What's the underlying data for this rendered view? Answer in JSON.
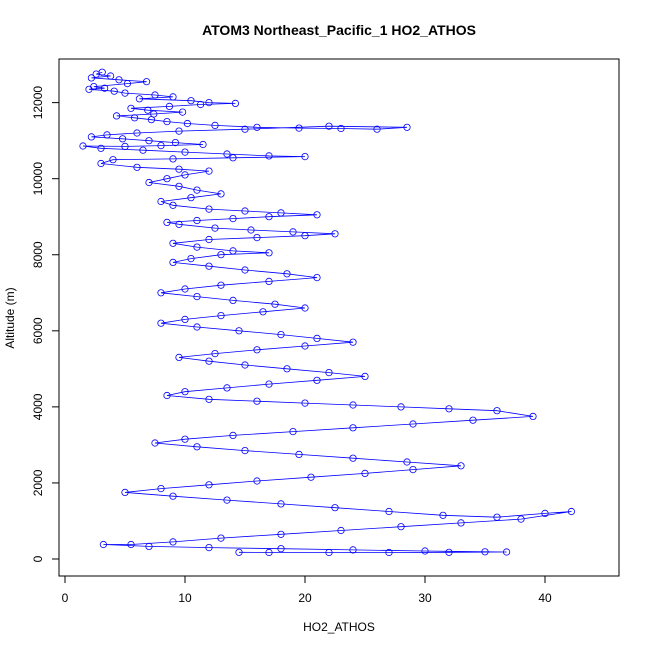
{
  "chart_data": {
    "type": "scatter",
    "title": "ATOM3 Northeast_Pacific_1 HO2_ATHOS",
    "xlabel": "HO2_ATHOS",
    "ylabel": "Altitude (m)",
    "xlim": [
      0,
      42
    ],
    "ylim": [
      0,
      12700
    ],
    "x_ticks": [
      0,
      10,
      20,
      30,
      40
    ],
    "y_ticks": [
      0,
      2000,
      4000,
      6000,
      8000,
      10000,
      12000
    ],
    "point_style": "open-circle",
    "connected": true,
    "grid": false,
    "legend": "none",
    "color": "#0000ff",
    "series": [
      {
        "points": [
          [
            3.1,
            12800
          ],
          [
            2.6,
            12750
          ],
          [
            3.8,
            12700
          ],
          [
            2.2,
            12650
          ],
          [
            4.5,
            12600
          ],
          [
            6.8,
            12550
          ],
          [
            5.2,
            12500
          ],
          [
            2.4,
            12420
          ],
          [
            3.3,
            12380
          ],
          [
            2.0,
            12350
          ],
          [
            4.1,
            12300
          ],
          [
            5.0,
            12250
          ],
          [
            7.5,
            12200
          ],
          [
            9.0,
            12150
          ],
          [
            6.2,
            12100
          ],
          [
            10.5,
            12050
          ],
          [
            12.0,
            12000
          ],
          [
            14.2,
            11980
          ],
          [
            11.3,
            11950
          ],
          [
            8.7,
            11900
          ],
          [
            5.5,
            11850
          ],
          [
            6.9,
            11800
          ],
          [
            9.8,
            11750
          ],
          [
            7.4,
            11700
          ],
          [
            4.3,
            11650
          ],
          [
            5.8,
            11600
          ],
          [
            7.2,
            11550
          ],
          [
            8.5,
            11500
          ],
          [
            10.2,
            11450
          ],
          [
            12.5,
            11400
          ],
          [
            16.0,
            11350
          ],
          [
            19.5,
            11330
          ],
          [
            23.0,
            11320
          ],
          [
            26.0,
            11300
          ],
          [
            28.5,
            11350
          ],
          [
            22.0,
            11380
          ],
          [
            15.0,
            11300
          ],
          [
            9.5,
            11250
          ],
          [
            6.0,
            11200
          ],
          [
            3.5,
            11150
          ],
          [
            2.2,
            11100
          ],
          [
            4.8,
            11050
          ],
          [
            7.0,
            11000
          ],
          [
            9.2,
            10950
          ],
          [
            11.5,
            10900
          ],
          [
            8.0,
            10870
          ],
          [
            5.0,
            10850
          ],
          [
            1.5,
            10860
          ],
          [
            3.0,
            10800
          ],
          [
            6.5,
            10750
          ],
          [
            10.0,
            10700
          ],
          [
            13.5,
            10650
          ],
          [
            17.0,
            10600
          ],
          [
            20.0,
            10580
          ],
          [
            14.0,
            10550
          ],
          [
            9.0,
            10520
          ],
          [
            4.0,
            10500
          ],
          [
            3.0,
            10400
          ],
          [
            6.0,
            10300
          ],
          [
            9.5,
            10250
          ],
          [
            12.0,
            10200
          ],
          [
            10.0,
            10100
          ],
          [
            8.5,
            10000
          ],
          [
            7.0,
            9900
          ],
          [
            9.5,
            9800
          ],
          [
            11.0,
            9700
          ],
          [
            13.0,
            9600
          ],
          [
            10.5,
            9500
          ],
          [
            8.0,
            9400
          ],
          [
            9.0,
            9300
          ],
          [
            12.0,
            9200
          ],
          [
            15.0,
            9150
          ],
          [
            18.0,
            9100
          ],
          [
            21.0,
            9050
          ],
          [
            17.0,
            9000
          ],
          [
            14.0,
            8950
          ],
          [
            11.0,
            8900
          ],
          [
            8.5,
            8850
          ],
          [
            9.5,
            8800
          ],
          [
            12.5,
            8700
          ],
          [
            15.5,
            8650
          ],
          [
            19.0,
            8600
          ],
          [
            22.5,
            8550
          ],
          [
            20.0,
            8500
          ],
          [
            16.0,
            8450
          ],
          [
            12.0,
            8400
          ],
          [
            9.0,
            8300
          ],
          [
            11.0,
            8200
          ],
          [
            14.0,
            8100
          ],
          [
            17.0,
            8050
          ],
          [
            13.0,
            8000
          ],
          [
            10.5,
            7900
          ],
          [
            9.0,
            7800
          ],
          [
            12.0,
            7700
          ],
          [
            15.0,
            7600
          ],
          [
            18.5,
            7500
          ],
          [
            21.0,
            7400
          ],
          [
            17.0,
            7300
          ],
          [
            13.0,
            7200
          ],
          [
            10.0,
            7100
          ],
          [
            8.0,
            7000
          ],
          [
            11.0,
            6900
          ],
          [
            14.0,
            6800
          ],
          [
            17.5,
            6700
          ],
          [
            20.0,
            6600
          ],
          [
            16.5,
            6500
          ],
          [
            13.0,
            6400
          ],
          [
            10.0,
            6300
          ],
          [
            8.0,
            6200
          ],
          [
            11.0,
            6100
          ],
          [
            14.5,
            6000
          ],
          [
            18.0,
            5900
          ],
          [
            21.0,
            5800
          ],
          [
            24.0,
            5700
          ],
          [
            20.0,
            5600
          ],
          [
            16.0,
            5500
          ],
          [
            12.5,
            5400
          ],
          [
            9.5,
            5300
          ],
          [
            12.0,
            5200
          ],
          [
            15.0,
            5100
          ],
          [
            18.5,
            5000
          ],
          [
            22.0,
            4900
          ],
          [
            25.0,
            4800
          ],
          [
            21.0,
            4700
          ],
          [
            17.0,
            4600
          ],
          [
            13.5,
            4500
          ],
          [
            10.0,
            4400
          ],
          [
            8.5,
            4300
          ],
          [
            12.0,
            4200
          ],
          [
            16.0,
            4150
          ],
          [
            20.0,
            4100
          ],
          [
            24.0,
            4050
          ],
          [
            28.0,
            4000
          ],
          [
            32.0,
            3950
          ],
          [
            36.0,
            3900
          ],
          [
            39.0,
            3750
          ],
          [
            34.0,
            3650
          ],
          [
            29.0,
            3550
          ],
          [
            24.0,
            3450
          ],
          [
            19.0,
            3350
          ],
          [
            14.0,
            3250
          ],
          [
            10.0,
            3150
          ],
          [
            7.5,
            3050
          ],
          [
            11.0,
            2950
          ],
          [
            15.0,
            2850
          ],
          [
            19.5,
            2750
          ],
          [
            24.0,
            2650
          ],
          [
            28.5,
            2550
          ],
          [
            33.0,
            2450
          ],
          [
            29.0,
            2350
          ],
          [
            25.0,
            2250
          ],
          [
            20.5,
            2150
          ],
          [
            16.0,
            2050
          ],
          [
            12.0,
            1950
          ],
          [
            8.0,
            1850
          ],
          [
            5.0,
            1750
          ],
          [
            9.0,
            1650
          ],
          [
            13.5,
            1550
          ],
          [
            18.0,
            1450
          ],
          [
            22.5,
            1350
          ],
          [
            27.0,
            1250
          ],
          [
            31.5,
            1150
          ],
          [
            36.0,
            1100
          ],
          [
            40.0,
            1200
          ],
          [
            42.2,
            1250
          ],
          [
            38.0,
            1050
          ],
          [
            33.0,
            950
          ],
          [
            28.0,
            850
          ],
          [
            23.0,
            750
          ],
          [
            18.0,
            650
          ],
          [
            13.0,
            550
          ],
          [
            9.0,
            450
          ],
          [
            5.5,
            380
          ],
          [
            3.2,
            380
          ],
          [
            7.0,
            330
          ],
          [
            12.0,
            300
          ],
          [
            18.0,
            270
          ],
          [
            24.0,
            240
          ],
          [
            30.0,
            210
          ],
          [
            35.0,
            190
          ],
          [
            36.8,
            185
          ],
          [
            32.0,
            175
          ],
          [
            27.0,
            170
          ],
          [
            22.0,
            170
          ],
          [
            17.0,
            170
          ],
          [
            14.5,
            175
          ]
        ]
      }
    ]
  }
}
